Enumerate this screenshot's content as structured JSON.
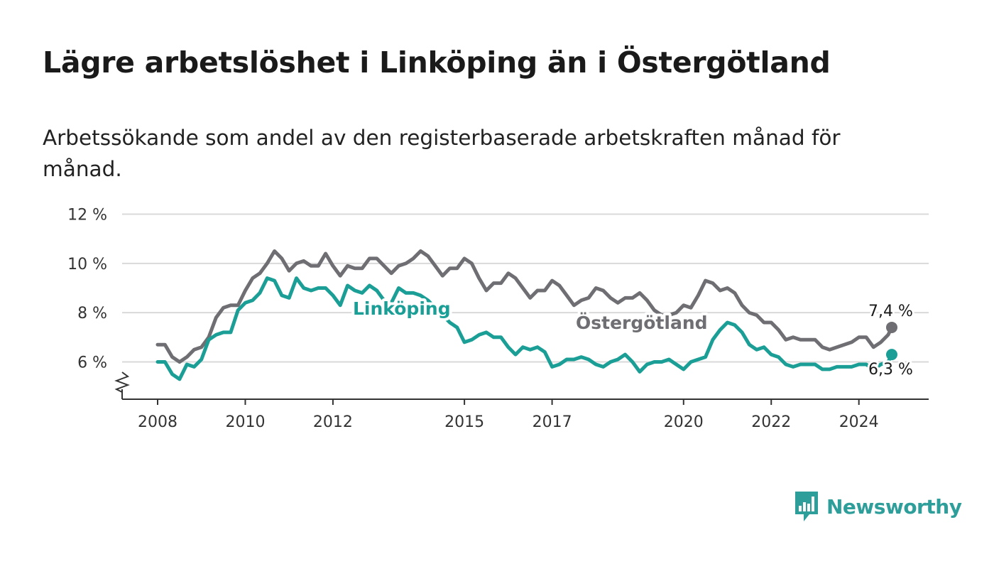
{
  "title": "Lägre arbetslöshet i Linköping än i Östergötland",
  "subtitle": "Arbetssökande som andel av den registerbaserade arbetskraften månad för månad.",
  "brand": {
    "name": "Newsworthy",
    "icon": "newsworthy-logo-icon"
  },
  "chart_data": {
    "type": "line",
    "title": "Lägre arbetslöshet i Linköping än i Östergötland",
    "subtitle": "Arbetssökande som andel av den registerbaserade arbetskraften månad för månad.",
    "xlabel": "",
    "ylabel": "",
    "ylim": [
      4.5,
      12
    ],
    "y_ticks": [
      6,
      8,
      10,
      12
    ],
    "y_tick_labels": [
      "6 %",
      "8 %",
      "10 %",
      "12 %"
    ],
    "y_axis_break": true,
    "x_ticks": [
      2008,
      2010,
      2012,
      2015,
      2017,
      2020,
      2022,
      2024
    ],
    "x_tick_labels": [
      "2008",
      "2010",
      "2012",
      "2015",
      "2017",
      "2020",
      "2022",
      "2024"
    ],
    "grid": true,
    "legend": "inline labels",
    "x_start": "2008-01",
    "x_end": "2024-10",
    "series": [
      {
        "name": "Östergötland",
        "color": "#6e6e73",
        "end_label": "7,4 %",
        "points": [
          [
            "2008-01",
            6.7
          ],
          [
            "2008-03",
            6.7
          ],
          [
            "2008-05",
            6.2
          ],
          [
            "2008-07",
            6.0
          ],
          [
            "2008-09",
            6.2
          ],
          [
            "2008-11",
            6.5
          ],
          [
            "2009-01",
            6.6
          ],
          [
            "2009-03",
            7.0
          ],
          [
            "2009-05",
            7.8
          ],
          [
            "2009-07",
            8.2
          ],
          [
            "2009-09",
            8.3
          ],
          [
            "2009-11",
            8.3
          ],
          [
            "2010-01",
            8.9
          ],
          [
            "2010-03",
            9.4
          ],
          [
            "2010-05",
            9.6
          ],
          [
            "2010-07",
            10.0
          ],
          [
            "2010-09",
            10.5
          ],
          [
            "2010-11",
            10.2
          ],
          [
            "2011-01",
            9.7
          ],
          [
            "2011-03",
            10.0
          ],
          [
            "2011-05",
            10.1
          ],
          [
            "2011-07",
            9.9
          ],
          [
            "2011-09",
            9.9
          ],
          [
            "2011-11",
            10.4
          ],
          [
            "2012-01",
            9.9
          ],
          [
            "2012-03",
            9.5
          ],
          [
            "2012-05",
            9.9
          ],
          [
            "2012-07",
            9.8
          ],
          [
            "2012-09",
            9.8
          ],
          [
            "2012-11",
            10.2
          ],
          [
            "2013-01",
            10.2
          ],
          [
            "2013-03",
            9.9
          ],
          [
            "2013-05",
            9.6
          ],
          [
            "2013-07",
            9.9
          ],
          [
            "2013-09",
            10.0
          ],
          [
            "2013-11",
            10.2
          ],
          [
            "2014-01",
            10.5
          ],
          [
            "2014-03",
            10.3
          ],
          [
            "2014-05",
            9.9
          ],
          [
            "2014-07",
            9.5
          ],
          [
            "2014-09",
            9.8
          ],
          [
            "2014-11",
            9.8
          ],
          [
            "2015-01",
            10.2
          ],
          [
            "2015-03",
            10.0
          ],
          [
            "2015-05",
            9.4
          ],
          [
            "2015-07",
            8.9
          ],
          [
            "2015-09",
            9.2
          ],
          [
            "2015-11",
            9.2
          ],
          [
            "2016-01",
            9.6
          ],
          [
            "2016-03",
            9.4
          ],
          [
            "2016-05",
            9.0
          ],
          [
            "2016-07",
            8.6
          ],
          [
            "2016-09",
            8.9
          ],
          [
            "2016-11",
            8.9
          ],
          [
            "2017-01",
            9.3
          ],
          [
            "2017-03",
            9.1
          ],
          [
            "2017-05",
            8.7
          ],
          [
            "2017-07",
            8.3
          ],
          [
            "2017-09",
            8.5
          ],
          [
            "2017-11",
            8.6
          ],
          [
            "2018-01",
            9.0
          ],
          [
            "2018-03",
            8.9
          ],
          [
            "2018-05",
            8.6
          ],
          [
            "2018-07",
            8.4
          ],
          [
            "2018-09",
            8.6
          ],
          [
            "2018-11",
            8.6
          ],
          [
            "2019-01",
            8.8
          ],
          [
            "2019-03",
            8.5
          ],
          [
            "2019-05",
            8.1
          ],
          [
            "2019-07",
            7.9
          ],
          [
            "2019-09",
            7.9
          ],
          [
            "2019-11",
            8.0
          ],
          [
            "2020-01",
            8.3
          ],
          [
            "2020-03",
            8.2
          ],
          [
            "2020-05",
            8.7
          ],
          [
            "2020-07",
            9.3
          ],
          [
            "2020-09",
            9.2
          ],
          [
            "2020-11",
            8.9
          ],
          [
            "2021-01",
            9.0
          ],
          [
            "2021-03",
            8.8
          ],
          [
            "2021-05",
            8.3
          ],
          [
            "2021-07",
            8.0
          ],
          [
            "2021-09",
            7.9
          ],
          [
            "2021-11",
            7.6
          ],
          [
            "2022-01",
            7.6
          ],
          [
            "2022-03",
            7.3
          ],
          [
            "2022-05",
            6.9
          ],
          [
            "2022-07",
            7.0
          ],
          [
            "2022-09",
            6.9
          ],
          [
            "2022-11",
            6.9
          ],
          [
            "2023-01",
            6.9
          ],
          [
            "2023-03",
            6.6
          ],
          [
            "2023-05",
            6.5
          ],
          [
            "2023-07",
            6.6
          ],
          [
            "2023-09",
            6.7
          ],
          [
            "2023-11",
            6.8
          ],
          [
            "2024-01",
            7.0
          ],
          [
            "2024-03",
            7.0
          ],
          [
            "2024-05",
            6.6
          ],
          [
            "2024-07",
            6.8
          ],
          [
            "2024-09",
            7.1
          ],
          [
            "2024-10",
            7.4
          ]
        ]
      },
      {
        "name": "Linköping",
        "color": "#1a9e96",
        "end_label": "6,3 %",
        "points": [
          [
            "2008-01",
            6.0
          ],
          [
            "2008-03",
            6.0
          ],
          [
            "2008-05",
            5.5
          ],
          [
            "2008-07",
            5.3
          ],
          [
            "2008-09",
            5.9
          ],
          [
            "2008-11",
            5.8
          ],
          [
            "2009-01",
            6.1
          ],
          [
            "2009-03",
            6.9
          ],
          [
            "2009-05",
            7.1
          ],
          [
            "2009-07",
            7.2
          ],
          [
            "2009-09",
            7.2
          ],
          [
            "2009-11",
            8.1
          ],
          [
            "2010-01",
            8.4
          ],
          [
            "2010-03",
            8.5
          ],
          [
            "2010-05",
            8.8
          ],
          [
            "2010-07",
            9.4
          ],
          [
            "2010-09",
            9.3
          ],
          [
            "2010-11",
            8.7
          ],
          [
            "2011-01",
            8.6
          ],
          [
            "2011-03",
            9.4
          ],
          [
            "2011-05",
            9.0
          ],
          [
            "2011-07",
            8.9
          ],
          [
            "2011-09",
            9.0
          ],
          [
            "2011-11",
            9.0
          ],
          [
            "2012-01",
            8.7
          ],
          [
            "2012-03",
            8.3
          ],
          [
            "2012-05",
            9.1
          ],
          [
            "2012-07",
            8.9
          ],
          [
            "2012-09",
            8.8
          ],
          [
            "2012-11",
            9.1
          ],
          [
            "2013-01",
            8.9
          ],
          [
            "2013-03",
            8.5
          ],
          [
            "2013-05",
            8.4
          ],
          [
            "2013-07",
            9.0
          ],
          [
            "2013-09",
            8.8
          ],
          [
            "2013-11",
            8.8
          ],
          [
            "2014-01",
            8.7
          ],
          [
            "2014-03",
            8.5
          ],
          [
            "2014-05",
            8.2
          ],
          [
            "2014-07",
            7.9
          ],
          [
            "2014-09",
            7.6
          ],
          [
            "2014-11",
            7.4
          ],
          [
            "2015-01",
            6.8
          ],
          [
            "2015-03",
            6.9
          ],
          [
            "2015-05",
            7.1
          ],
          [
            "2015-07",
            7.2
          ],
          [
            "2015-09",
            7.0
          ],
          [
            "2015-11",
            7.0
          ],
          [
            "2016-01",
            6.6
          ],
          [
            "2016-03",
            6.3
          ],
          [
            "2016-05",
            6.6
          ],
          [
            "2016-07",
            6.5
          ],
          [
            "2016-09",
            6.6
          ],
          [
            "2016-11",
            6.4
          ],
          [
            "2017-01",
            5.8
          ],
          [
            "2017-03",
            5.9
          ],
          [
            "2017-05",
            6.1
          ],
          [
            "2017-07",
            6.1
          ],
          [
            "2017-09",
            6.2
          ],
          [
            "2017-11",
            6.1
          ],
          [
            "2018-01",
            5.9
          ],
          [
            "2018-03",
            5.8
          ],
          [
            "2018-05",
            6.0
          ],
          [
            "2018-07",
            6.1
          ],
          [
            "2018-09",
            6.3
          ],
          [
            "2018-11",
            6.0
          ],
          [
            "2019-01",
            5.6
          ],
          [
            "2019-03",
            5.9
          ],
          [
            "2019-05",
            6.0
          ],
          [
            "2019-07",
            6.0
          ],
          [
            "2019-09",
            6.1
          ],
          [
            "2019-11",
            5.9
          ],
          [
            "2020-01",
            5.7
          ],
          [
            "2020-03",
            6.0
          ],
          [
            "2020-05",
            6.1
          ],
          [
            "2020-07",
            6.2
          ],
          [
            "2020-09",
            6.9
          ],
          [
            "2020-11",
            7.3
          ],
          [
            "2021-01",
            7.6
          ],
          [
            "2021-03",
            7.5
          ],
          [
            "2021-05",
            7.2
          ],
          [
            "2021-07",
            6.7
          ],
          [
            "2021-09",
            6.5
          ],
          [
            "2021-11",
            6.6
          ],
          [
            "2022-01",
            6.3
          ],
          [
            "2022-03",
            6.2
          ],
          [
            "2022-05",
            5.9
          ],
          [
            "2022-07",
            5.8
          ],
          [
            "2022-09",
            5.9
          ],
          [
            "2022-11",
            5.9
          ],
          [
            "2023-01",
            5.9
          ],
          [
            "2023-03",
            5.7
          ],
          [
            "2023-05",
            5.7
          ],
          [
            "2023-07",
            5.8
          ],
          [
            "2023-09",
            5.8
          ],
          [
            "2023-11",
            5.8
          ],
          [
            "2024-01",
            5.9
          ],
          [
            "2024-03",
            5.9
          ],
          [
            "2024-05",
            5.7
          ],
          [
            "2024-07",
            5.9
          ],
          [
            "2024-09",
            6.0
          ],
          [
            "2024-10",
            6.3
          ]
        ]
      }
    ]
  }
}
